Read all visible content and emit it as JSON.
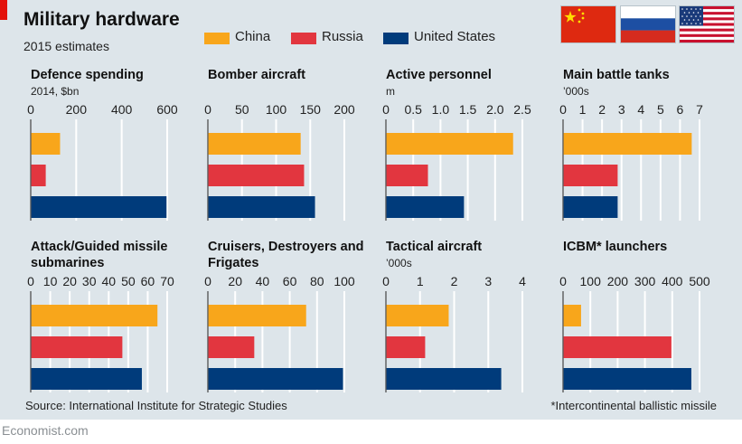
{
  "title": "Military hardware",
  "subtitle": "2015 estimates",
  "legend": [
    {
      "name": "China",
      "color": "#f8a61b"
    },
    {
      "name": "Russia",
      "color": "#e2363f"
    },
    {
      "name": "United States",
      "color": "#003b7b"
    }
  ],
  "flags": [
    "china-flag",
    "russia-flag",
    "united-states-flag"
  ],
  "colors": {
    "china": "#f8a61b",
    "russia": "#e2363f",
    "united_states": "#003b7b",
    "background": "#dde5ea",
    "gridline": "#ffffff"
  },
  "source": "Source: International Institute for Strategic Studies",
  "footnote": "*Intercontinental ballistic missile",
  "brand": "Economist.com",
  "chart_data": [
    {
      "type": "bar",
      "orientation": "horizontal",
      "title": "Defence spending",
      "unit": "2014, $bn",
      "categories": [
        "China",
        "Russia",
        "United States"
      ],
      "values": [
        129,
        66,
        597
      ],
      "xlim": [
        0,
        600
      ],
      "ticks": [
        0,
        200,
        400,
        600
      ],
      "tick_labels": [
        "0",
        "200",
        "400",
        "600"
      ],
      "grid": true
    },
    {
      "type": "bar",
      "orientation": "horizontal",
      "title": "Bomber aircraft",
      "unit": "",
      "categories": [
        "China",
        "Russia",
        "United States"
      ],
      "values": [
        136,
        141,
        157
      ],
      "xlim": [
        0,
        200
      ],
      "ticks": [
        0,
        50,
        100,
        150,
        200
      ],
      "tick_labels": [
        "0",
        "50",
        "100",
        "150",
        "200"
      ],
      "grid": true
    },
    {
      "type": "bar",
      "orientation": "horizontal",
      "title": "Active personnel",
      "unit": "m",
      "categories": [
        "China",
        "Russia",
        "United States"
      ],
      "values": [
        2.33,
        0.77,
        1.43
      ],
      "xlim": [
        0,
        2.5
      ],
      "ticks": [
        0,
        0.5,
        1,
        1.5,
        2,
        2.5
      ],
      "tick_labels": [
        "0",
        "0.5",
        "1.0",
        "1.5",
        "2.0",
        "2.5"
      ],
      "grid": true
    },
    {
      "type": "bar",
      "orientation": "horizontal",
      "title": "Main battle tanks",
      "unit": "’000s",
      "categories": [
        "China",
        "Russia",
        "United States"
      ],
      "values": [
        6.6,
        2.8,
        2.8
      ],
      "xlim": [
        0,
        7
      ],
      "ticks": [
        0,
        1,
        2,
        3,
        4,
        5,
        6,
        7
      ],
      "tick_labels": [
        "0",
        "1",
        "2",
        "3",
        "4",
        "5",
        "6",
        "7"
      ],
      "grid": true
    },
    {
      "type": "bar",
      "orientation": "horizontal",
      "title": "Attack/Guided missile submarines",
      "unit": "",
      "categories": [
        "China",
        "Russia",
        "United States"
      ],
      "values": [
        65,
        47,
        57
      ],
      "xlim": [
        0,
        70
      ],
      "ticks": [
        0,
        10,
        20,
        30,
        40,
        50,
        60,
        70
      ],
      "tick_labels": [
        "0",
        "10",
        "20",
        "30",
        "40",
        "50",
        "60",
        "70"
      ],
      "grid": true
    },
    {
      "type": "bar",
      "orientation": "horizontal",
      "title": "Cruisers, Destroyers and Frigates",
      "unit": "",
      "categories": [
        "China",
        "Russia",
        "United States"
      ],
      "values": [
        72,
        34,
        99
      ],
      "xlim": [
        0,
        100
      ],
      "ticks": [
        0,
        20,
        40,
        60,
        80,
        100
      ],
      "tick_labels": [
        "0",
        "20",
        "40",
        "60",
        "80",
        "100"
      ],
      "grid": true
    },
    {
      "type": "bar",
      "orientation": "horizontal",
      "title": "Tactical aircraft",
      "unit": "’000s",
      "categories": [
        "China",
        "Russia",
        "United States"
      ],
      "values": [
        1.84,
        1.15,
        3.38
      ],
      "xlim": [
        0,
        4
      ],
      "ticks": [
        0,
        1,
        2,
        3,
        4
      ],
      "tick_labels": [
        "0",
        "1",
        "2",
        "3",
        "4"
      ],
      "grid": true
    },
    {
      "type": "bar",
      "orientation": "horizontal",
      "title": "ICBM* launchers",
      "unit": "",
      "categories": [
        "China",
        "Russia",
        "United States"
      ],
      "values": [
        66,
        397,
        470
      ],
      "xlim": [
        0,
        500
      ],
      "ticks": [
        0,
        100,
        200,
        300,
        400,
        500
      ],
      "tick_labels": [
        "0",
        "100",
        "200",
        "300",
        "400",
        "500"
      ],
      "grid": true
    }
  ]
}
